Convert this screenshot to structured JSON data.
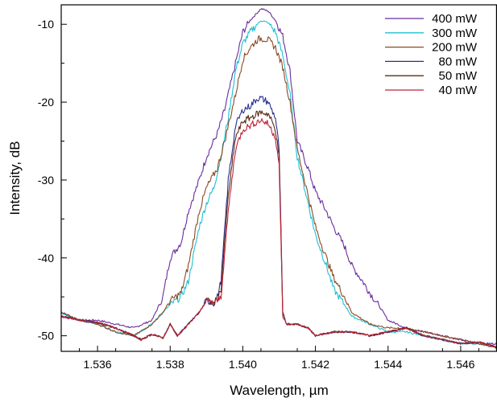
{
  "chart_data": {
    "type": "line",
    "title": "",
    "xlabel": "Wavelength, µm",
    "ylabel": "Intensity, dB",
    "xlim": [
      1.535,
      1.547
    ],
    "ylim": [
      -52,
      -7.5
    ],
    "x_ticks": [
      1.536,
      1.538,
      1.54,
      1.542,
      1.544,
      1.546
    ],
    "x_tick_labels": [
      "1.536",
      "1.538",
      "1.540",
      "1.542",
      "1.544",
      "1.546"
    ],
    "y_ticks": [
      -50,
      -40,
      -30,
      -20,
      -10
    ],
    "y_tick_labels": [
      "-50",
      "-40",
      "-30",
      "-20",
      "-10"
    ],
    "grid": false,
    "legend_position": "top-right",
    "series": [
      {
        "name": "400 mW",
        "color": "#6a2d9c",
        "x": [
          1.535,
          1.5355,
          1.536,
          1.5365,
          1.537,
          1.5375,
          1.5378,
          1.538,
          1.5383,
          1.5385,
          1.5388,
          1.539,
          1.5393,
          1.5395,
          1.5398,
          1.54,
          1.5402,
          1.5404,
          1.5405,
          1.5407,
          1.5409,
          1.5411,
          1.5413,
          1.5415,
          1.5418,
          1.542,
          1.5423,
          1.5425,
          1.5428,
          1.543,
          1.5433,
          1.5435,
          1.5438,
          1.544,
          1.5445,
          1.545,
          1.5455,
          1.546,
          1.5465,
          1.547
        ],
        "y": [
          -47,
          -48,
          -48,
          -48.5,
          -49,
          -48,
          -45,
          -40,
          -38,
          -34,
          -30,
          -27,
          -24,
          -21,
          -15,
          -11,
          -9.5,
          -8.5,
          -8,
          -8.3,
          -9.5,
          -11.5,
          -16,
          -25,
          -28.5,
          -31.5,
          -34,
          -36,
          -38.5,
          -41,
          -43,
          -44.5,
          -46.5,
          -48,
          -49,
          -49.5,
          -50,
          -50.5,
          -51,
          -51
        ]
      },
      {
        "name": "300 mW",
        "color": "#1ec0d6",
        "x": [
          1.535,
          1.5355,
          1.536,
          1.5365,
          1.537,
          1.5375,
          1.5378,
          1.538,
          1.5383,
          1.5385,
          1.5388,
          1.539,
          1.5392,
          1.5394,
          1.5396,
          1.5398,
          1.54,
          1.5402,
          1.5404,
          1.5405,
          1.5407,
          1.5409,
          1.5411,
          1.5413,
          1.5415,
          1.5418,
          1.542,
          1.5423,
          1.5425,
          1.5428,
          1.543,
          1.5435,
          1.544,
          1.5445,
          1.545,
          1.5455,
          1.546,
          1.5465,
          1.547
        ],
        "y": [
          -47,
          -48,
          -48.5,
          -49.5,
          -50,
          -48.5,
          -47,
          -46,
          -45,
          -43,
          -36,
          -33,
          -31,
          -27,
          -22,
          -16,
          -12.5,
          -11,
          -10,
          -9.5,
          -9.8,
          -11,
          -14,
          -19,
          -27,
          -33,
          -37,
          -41,
          -44,
          -46,
          -47.5,
          -48.5,
          -49.5,
          -49.5,
          -50,
          -50.5,
          -51,
          -51,
          -51.5
        ]
      },
      {
        "name": "200 mW",
        "color": "#8b4a24",
        "x": [
          1.535,
          1.5355,
          1.536,
          1.5365,
          1.537,
          1.5375,
          1.5378,
          1.538,
          1.5383,
          1.5385,
          1.5388,
          1.539,
          1.5393,
          1.5395,
          1.5398,
          1.54,
          1.5402,
          1.5404,
          1.5405,
          1.5407,
          1.5409,
          1.5411,
          1.5413,
          1.5415,
          1.5418,
          1.542,
          1.5423,
          1.5425,
          1.5428,
          1.543,
          1.5435,
          1.544,
          1.5445,
          1.545,
          1.5455,
          1.546,
          1.5465,
          1.547
        ],
        "y": [
          -47,
          -48,
          -48.5,
          -49.5,
          -50,
          -48.5,
          -47,
          -45.5,
          -44.5,
          -41,
          -34,
          -31,
          -28.5,
          -25,
          -19,
          -14.5,
          -13,
          -12,
          -11.8,
          -12,
          -13,
          -15.5,
          -20,
          -26,
          -32,
          -36,
          -40,
          -42.5,
          -45,
          -47,
          -48.5,
          -49,
          -49,
          -49.5,
          -50,
          -50.5,
          -51,
          -51.5
        ]
      },
      {
        "name": "80 mW",
        "color": "#2b2f8c",
        "x": [
          1.535,
          1.5355,
          1.536,
          1.5365,
          1.537,
          1.5372,
          1.5375,
          1.5378,
          1.538,
          1.5382,
          1.5385,
          1.5388,
          1.539,
          1.5392,
          1.5393,
          1.5394,
          1.5396,
          1.5398,
          1.54,
          1.5402,
          1.5404,
          1.5405,
          1.5407,
          1.5409,
          1.541,
          1.5411,
          1.5412,
          1.5415,
          1.5418,
          1.542,
          1.5425,
          1.543,
          1.5435,
          1.544,
          1.5445,
          1.545,
          1.5455,
          1.546,
          1.5465,
          1.547
        ],
        "y": [
          -47.5,
          -48,
          -48.3,
          -49,
          -50,
          -50.5,
          -49.8,
          -50.3,
          -48.5,
          -50,
          -48.5,
          -47,
          -45.5,
          -45.8,
          -45,
          -43,
          -30,
          -23,
          -21,
          -20.5,
          -19.5,
          -19.5,
          -20,
          -22,
          -26,
          -47,
          -48.5,
          -48.5,
          -49,
          -50,
          -49.5,
          -49.5,
          -50,
          -49.5,
          -49,
          -50,
          -50.5,
          -51,
          -50.8,
          -51.5
        ]
      },
      {
        "name": "50 mW",
        "color": "#5a2b14",
        "x": [
          1.535,
          1.5355,
          1.536,
          1.5365,
          1.537,
          1.5372,
          1.5375,
          1.5378,
          1.538,
          1.5382,
          1.5385,
          1.5388,
          1.539,
          1.5392,
          1.5393,
          1.5394,
          1.5396,
          1.5398,
          1.54,
          1.5402,
          1.5404,
          1.5405,
          1.5407,
          1.5409,
          1.541,
          1.5411,
          1.5412,
          1.5415,
          1.5418,
          1.542,
          1.5425,
          1.543,
          1.5435,
          1.544,
          1.5445,
          1.545,
          1.5455,
          1.546,
          1.5465,
          1.547
        ],
        "y": [
          -47.5,
          -48,
          -48.3,
          -49,
          -50,
          -50.5,
          -49.8,
          -50.3,
          -48.5,
          -50,
          -48.5,
          -47,
          -45.5,
          -45.8,
          -45.3,
          -44,
          -32,
          -24.5,
          -22.5,
          -22,
          -21.5,
          -21.3,
          -21.5,
          -23.5,
          -27,
          -47,
          -48.5,
          -48.5,
          -49,
          -50,
          -49.5,
          -49.5,
          -50,
          -49.5,
          -49,
          -50,
          -50.5,
          -51,
          -50.8,
          -51.5
        ]
      },
      {
        "name": "40 mW",
        "color": "#c0243a",
        "x": [
          1.535,
          1.5355,
          1.536,
          1.5365,
          1.537,
          1.5372,
          1.5375,
          1.5378,
          1.538,
          1.5382,
          1.5385,
          1.5388,
          1.539,
          1.5392,
          1.5393,
          1.5394,
          1.5396,
          1.5398,
          1.54,
          1.5402,
          1.5404,
          1.5405,
          1.5407,
          1.5409,
          1.541,
          1.5411,
          1.5412,
          1.5415,
          1.5418,
          1.542,
          1.5425,
          1.543,
          1.5435,
          1.544,
          1.5445,
          1.545,
          1.5455,
          1.546,
          1.5465,
          1.547
        ],
        "y": [
          -47.5,
          -48,
          -48.3,
          -49,
          -50,
          -50.5,
          -49.8,
          -50.3,
          -48.5,
          -50,
          -48.5,
          -47,
          -45.5,
          -45.8,
          -45.5,
          -45,
          -34,
          -26,
          -23.5,
          -23,
          -22.5,
          -22.3,
          -22.8,
          -24.5,
          -28,
          -47.5,
          -48.5,
          -48.5,
          -49,
          -50,
          -49.5,
          -49.5,
          -50,
          -49.5,
          -49,
          -50,
          -50.5,
          -51,
          -50.8,
          -51.5
        ]
      }
    ]
  }
}
